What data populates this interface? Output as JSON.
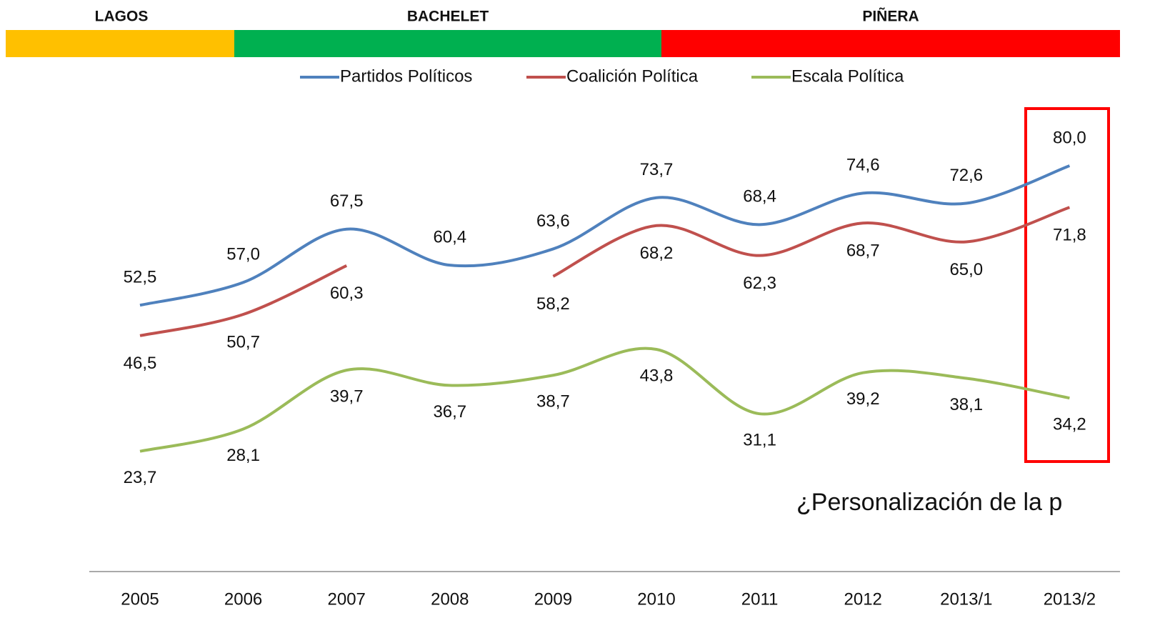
{
  "chart_data": {
    "type": "line",
    "periods": [
      {
        "name": "LAGOS",
        "color": "#ffc000"
      },
      {
        "name": "BACHELET",
        "color": "#00b050"
      },
      {
        "name": "PIÑERA",
        "color": "#ff0000"
      }
    ],
    "annotation": "¿Personalización de la p",
    "categories": [
      "2005",
      "2006",
      "2007",
      "2008",
      "2009",
      "2010",
      "2011",
      "2012",
      "2013/1",
      "2013/2"
    ],
    "series": [
      {
        "name": "Partidos Políticos",
        "color": "#4f81bd",
        "values": [
          52.5,
          57.0,
          67.5,
          60.4,
          63.6,
          73.7,
          68.4,
          74.6,
          72.6,
          80.0
        ],
        "value_labels": [
          "52,5",
          "57,0",
          "67,5",
          "60,4",
          "63,6",
          "73,7",
          "68,4",
          "74,6",
          "72,6",
          "80,0"
        ]
      },
      {
        "name": "Coalición Política",
        "color": "#c0504d",
        "values": [
          46.5,
          50.7,
          60.3,
          null,
          58.2,
          68.2,
          62.3,
          68.7,
          65.0,
          71.8
        ],
        "value_labels": [
          "46,5",
          "50,7",
          "60,3",
          null,
          "58,2",
          "68,2",
          "62,3",
          "68,7",
          "65,0",
          "71,8"
        ]
      },
      {
        "name": "Escala Política",
        "color": "#9bbb59",
        "values": [
          23.7,
          28.1,
          39.7,
          36.7,
          38.7,
          43.8,
          31.1,
          39.2,
          38.1,
          34.2
        ],
        "value_labels": [
          "23,7",
          "28,1",
          "39,7",
          "36,7",
          "38,7",
          "43,8",
          "31,1",
          "39,2",
          "38,1",
          "34,2"
        ]
      }
    ],
    "ylim": [
      0,
      90
    ]
  }
}
